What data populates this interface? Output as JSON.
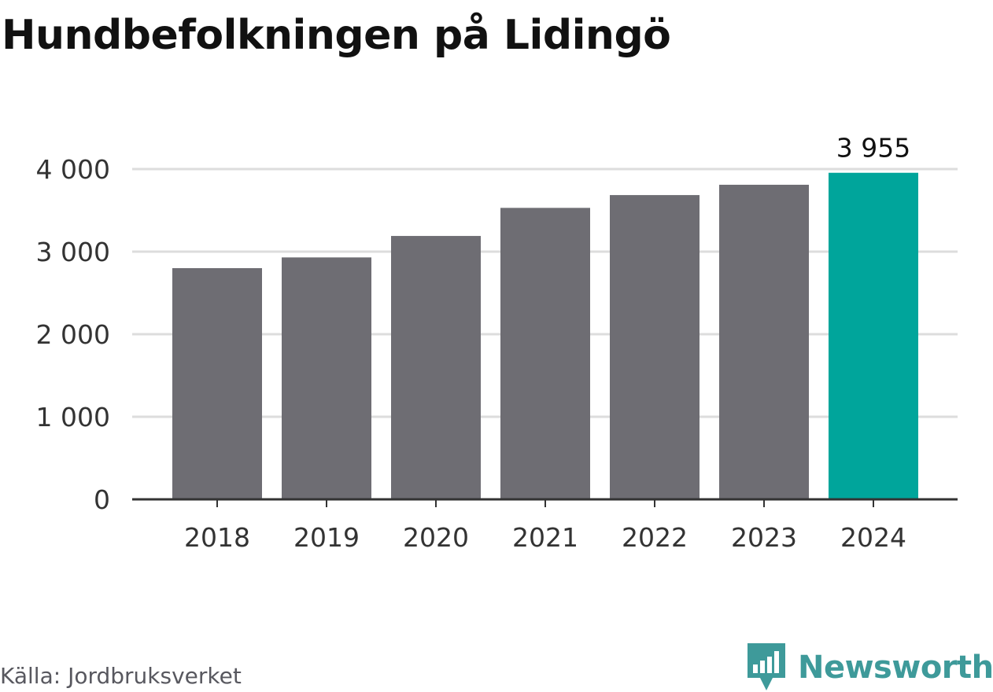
{
  "title": "Hundbefolkningen på Lidingö",
  "source": "Källa: Jordbruksverket",
  "brand": {
    "name": "Newsworthy",
    "logo_icon": "newsworthy-logo-icon",
    "color": "#3e9a9a"
  },
  "colors": {
    "bar": "#6e6d73",
    "highlight": "#00a59b",
    "grid": "#dddddd",
    "axis": "#333333"
  },
  "chart_data": {
    "type": "bar",
    "categories": [
      "2018",
      "2019",
      "2020",
      "2021",
      "2022",
      "2023",
      "2024"
    ],
    "values": [
      2800,
      2930,
      3190,
      3530,
      3685,
      3810,
      3955
    ],
    "highlight_index": 6,
    "data_labels": [
      {
        "index": 6,
        "text": "3 955"
      }
    ],
    "yticks": [
      0,
      1000,
      2000,
      3000,
      4000
    ],
    "ytick_labels": [
      "0",
      "1 000",
      "2 000",
      "3 000",
      "4 000"
    ],
    "ylim": [
      0,
      4000
    ],
    "grid": true,
    "legend": "none"
  }
}
